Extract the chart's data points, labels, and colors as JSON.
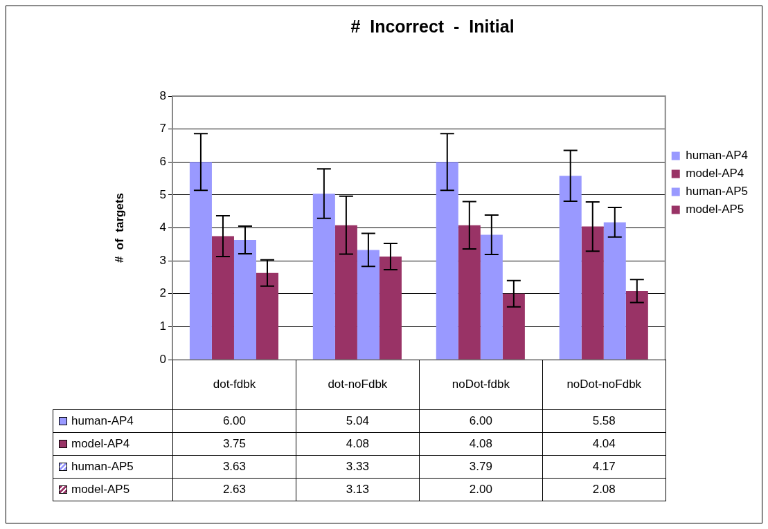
{
  "chart_data": {
    "type": "bar",
    "title": "#  Incorrect  -  Initial",
    "ylabel": "#  of  targets",
    "categories": [
      "dot-fdbk",
      "dot-noFdbk",
      "noDot-fdbk",
      "noDot-noFdbk"
    ],
    "ylim": [
      0,
      8
    ],
    "yticks": [
      0,
      1,
      2,
      3,
      4,
      5,
      6,
      7,
      8
    ],
    "grid": "y",
    "legend": "right",
    "data_labels": true,
    "series": [
      {
        "name": "human-AP4",
        "color": "#9999ff",
        "values": [
          6.0,
          5.04,
          6.0,
          5.58
        ],
        "value_labels": [
          "6.00",
          "5.04",
          "6.00",
          "5.58"
        ],
        "errors": [
          0.86,
          0.75,
          0.86,
          0.77
        ]
      },
      {
        "name": "model-AP4",
        "color": "#993366",
        "values": [
          3.75,
          4.08,
          4.08,
          4.04
        ],
        "value_labels": [
          "3.75",
          "4.08",
          "4.08",
          "4.04"
        ],
        "errors": [
          0.62,
          0.88,
          0.72,
          0.75
        ]
      },
      {
        "name": "human-AP5",
        "color": "#9999ff",
        "values": [
          3.63,
          3.33,
          3.79,
          4.17
        ],
        "value_labels": [
          "3.63",
          "3.33",
          "3.79",
          "4.17"
        ],
        "errors": [
          0.42,
          0.5,
          0.6,
          0.45
        ]
      },
      {
        "name": "model-AP5",
        "color": "#993366",
        "values": [
          2.63,
          3.13,
          2.0,
          2.08
        ],
        "value_labels": [
          "2.63",
          "3.13",
          "2.00",
          "2.08"
        ],
        "errors": [
          0.4,
          0.4,
          0.4,
          0.35
        ]
      }
    ]
  }
}
